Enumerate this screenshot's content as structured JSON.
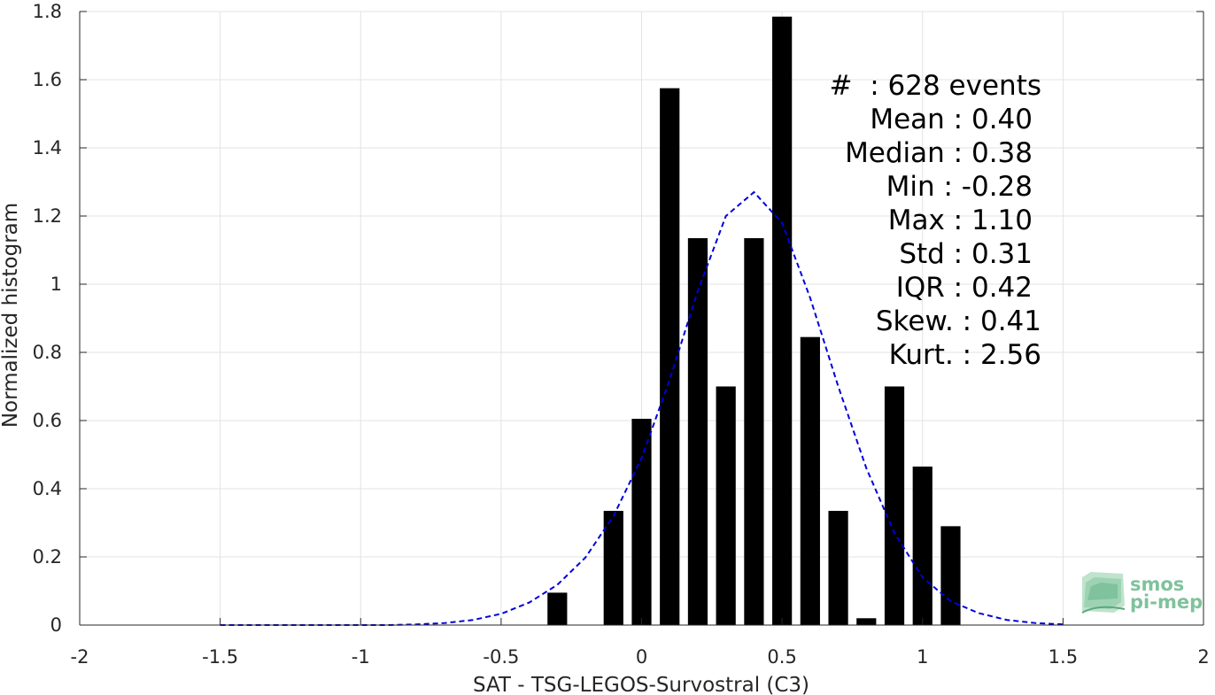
{
  "chart_data": {
    "type": "bar",
    "xlabel": "SAT - TSG-LEGOS-Survostral (C3)",
    "ylabel": "Normalized histogram",
    "xlim": [
      -2,
      2
    ],
    "ylim": [
      0,
      1.8
    ],
    "xticks": [
      -2,
      -1.5,
      -1,
      -0.5,
      0,
      0.5,
      1,
      1.5,
      2
    ],
    "xtick_labels": [
      "-2",
      "-1.5",
      "-1",
      "-0.5",
      "0",
      "0.5",
      "1",
      "1.5",
      "2"
    ],
    "yticks": [
      0,
      0.2,
      0.4,
      0.6,
      0.8,
      1,
      1.2,
      1.4,
      1.6,
      1.8
    ],
    "ytick_labels": [
      "0",
      "0.2",
      "0.4",
      "0.6",
      "0.8",
      "1",
      "1.2",
      "1.4",
      "1.6",
      "1.8"
    ],
    "grid": true,
    "bar_width": 0.07,
    "bars": {
      "x": [
        -0.3,
        -0.1,
        0.0,
        0.1,
        0.2,
        0.3,
        0.4,
        0.5,
        0.6,
        0.7,
        0.8,
        0.9,
        1.0,
        1.1
      ],
      "values": [
        0.095,
        0.335,
        0.605,
        1.575,
        1.135,
        0.7,
        1.135,
        1.785,
        0.845,
        0.335,
        0.02,
        0.7,
        0.465,
        0.29
      ],
      "color": "#000000"
    },
    "fit_curve": {
      "style": "dashed",
      "color": "#0000dd",
      "x": [
        -1.5,
        -1.4,
        -1.3,
        -1.2,
        -1.1,
        -1.0,
        -0.9,
        -0.8,
        -0.7,
        -0.6,
        -0.5,
        -0.4,
        -0.3,
        -0.2,
        -0.1,
        0.0,
        0.1,
        0.2,
        0.3,
        0.4,
        0.5,
        0.6,
        0.7,
        0.8,
        0.9,
        1.0,
        1.1,
        1.2,
        1.3,
        1.4,
        1.5
      ],
      "y": [
        0.0,
        0.0,
        0.0,
        0.0,
        0.0,
        0.0,
        0.0,
        0.002,
        0.006,
        0.015,
        0.033,
        0.066,
        0.118,
        0.198,
        0.32,
        0.49,
        0.72,
        0.98,
        1.2,
        1.27,
        1.18,
        0.96,
        0.7,
        0.46,
        0.27,
        0.14,
        0.07,
        0.035,
        0.015,
        0.006,
        0.002
      ]
    },
    "stats_lines": [
      "#  : 628 events",
      "Mean : 0.40",
      "Median : 0.38",
      "Min : -0.28",
      "Max : 1.10",
      "Std : 0.31",
      "IQR : 0.42",
      "Skew. : 0.41",
      "Kurt. : 2.56"
    ]
  },
  "logo": {
    "line1": "smos",
    "line2": "pi-mep",
    "color": "#7fc29b"
  }
}
